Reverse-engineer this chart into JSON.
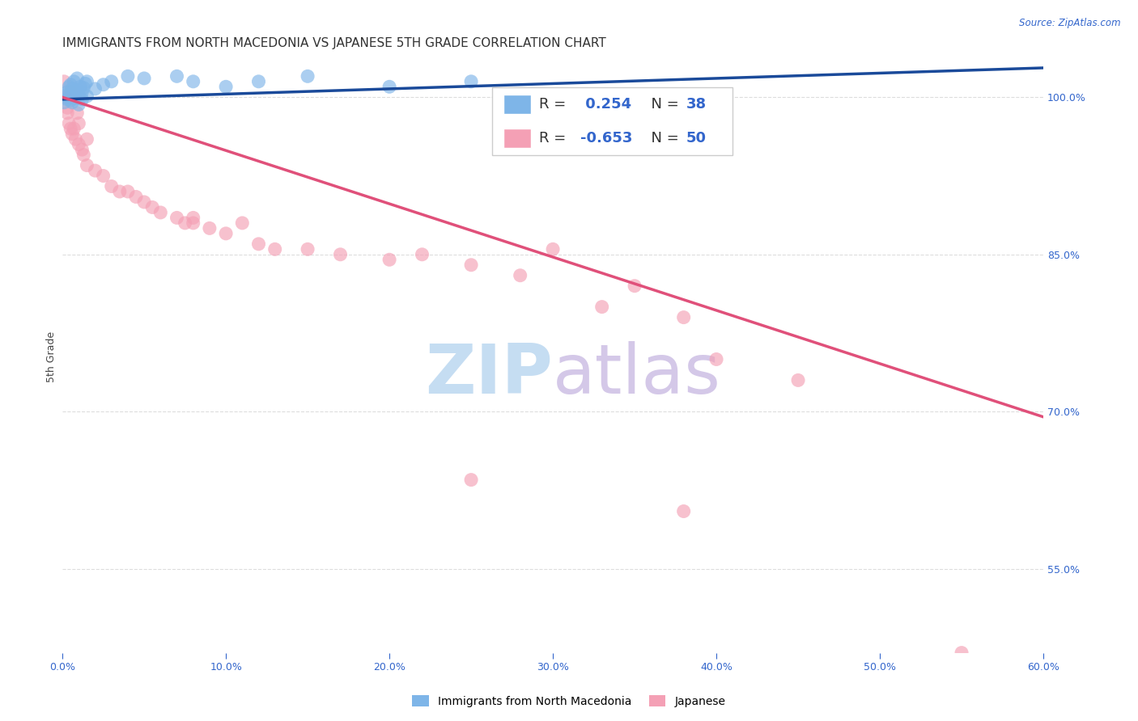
{
  "title": "IMMIGRANTS FROM NORTH MACEDONIA VS JAPANESE 5TH GRADE CORRELATION CHART",
  "source": "Source: ZipAtlas.com",
  "xlabel_ticks": [
    "0.0%",
    "10.0%",
    "20.0%",
    "30.0%",
    "40.0%",
    "50.0%",
    "60.0%"
  ],
  "xlabel_vals": [
    0.0,
    10.0,
    20.0,
    30.0,
    40.0,
    50.0,
    60.0
  ],
  "ylabel_ticks": [
    "55.0%",
    "70.0%",
    "85.0%",
    "100.0%"
  ],
  "ylabel_vals": [
    55.0,
    70.0,
    85.0,
    100.0
  ],
  "ylabel_label": "5th Grade",
  "xmin": 0.0,
  "xmax": 60.0,
  "ymin": 47.0,
  "ymax": 103.5,
  "blue_R": 0.254,
  "blue_N": 38,
  "pink_R": -0.653,
  "pink_N": 50,
  "blue_color": "#7eb5e8",
  "pink_color": "#f4a0b5",
  "blue_line_color": "#1a4a9a",
  "pink_line_color": "#e0507a",
  "legend_label_blue": "Immigrants from North Macedonia",
  "legend_label_pink": "Japanese",
  "blue_scatter_x": [
    0.1,
    0.2,
    0.3,
    0.3,
    0.4,
    0.4,
    0.5,
    0.5,
    0.5,
    0.6,
    0.6,
    0.7,
    0.7,
    0.8,
    0.8,
    0.9,
    0.9,
    1.0,
    1.0,
    1.1,
    1.2,
    1.2,
    1.3,
    1.4,
    1.5,
    1.5,
    2.0,
    2.5,
    3.0,
    4.0,
    5.0,
    7.0,
    8.0,
    10.0,
    12.0,
    15.0,
    20.0,
    25.0
  ],
  "blue_scatter_y": [
    99.5,
    100.2,
    99.8,
    100.5,
    100.0,
    101.0,
    100.3,
    99.7,
    101.2,
    100.8,
    99.5,
    100.6,
    101.5,
    100.4,
    99.9,
    100.7,
    101.8,
    100.2,
    99.3,
    101.0,
    100.5,
    99.8,
    100.9,
    101.3,
    100.1,
    101.5,
    100.8,
    101.2,
    101.5,
    102.0,
    101.8,
    102.0,
    101.5,
    101.0,
    101.5,
    102.0,
    101.0,
    101.5
  ],
  "pink_scatter_x": [
    0.1,
    0.2,
    0.3,
    0.3,
    0.4,
    0.5,
    0.5,
    0.6,
    0.7,
    0.8,
    0.9,
    1.0,
    1.0,
    1.2,
    1.3,
    1.5,
    1.5,
    2.0,
    2.5,
    3.0,
    3.5,
    4.0,
    4.5,
    5.0,
    5.5,
    6.0,
    7.0,
    7.5,
    8.0,
    9.0,
    10.0,
    11.0,
    12.0,
    13.0,
    15.0,
    17.0,
    20.0,
    22.0,
    25.0,
    28.0,
    30.0,
    33.0,
    35.0,
    38.0,
    40.0,
    45.0,
    55.0,
    38.0,
    25.0,
    8.0
  ],
  "pink_scatter_y": [
    101.5,
    100.0,
    99.0,
    98.5,
    97.5,
    100.5,
    97.0,
    96.5,
    97.0,
    96.0,
    98.5,
    97.5,
    95.5,
    95.0,
    94.5,
    96.0,
    93.5,
    93.0,
    92.5,
    91.5,
    91.0,
    91.0,
    90.5,
    90.0,
    89.5,
    89.0,
    88.5,
    88.0,
    88.0,
    87.5,
    87.0,
    88.0,
    86.0,
    85.5,
    85.5,
    85.0,
    84.5,
    85.0,
    84.0,
    83.0,
    85.5,
    80.0,
    82.0,
    79.0,
    75.0,
    73.0,
    47.0,
    60.5,
    63.5,
    88.5
  ],
  "blue_trend_x": [
    0.0,
    60.0
  ],
  "blue_trend_y": [
    99.8,
    102.8
  ],
  "pink_trend_x": [
    0.0,
    60.0
  ],
  "pink_trend_y": [
    100.0,
    69.5
  ],
  "grid_color": "#dddddd",
  "background_color": "#ffffff",
  "title_fontsize": 11,
  "axis_label_fontsize": 9,
  "tick_fontsize": 9,
  "legend_fontsize": 13
}
